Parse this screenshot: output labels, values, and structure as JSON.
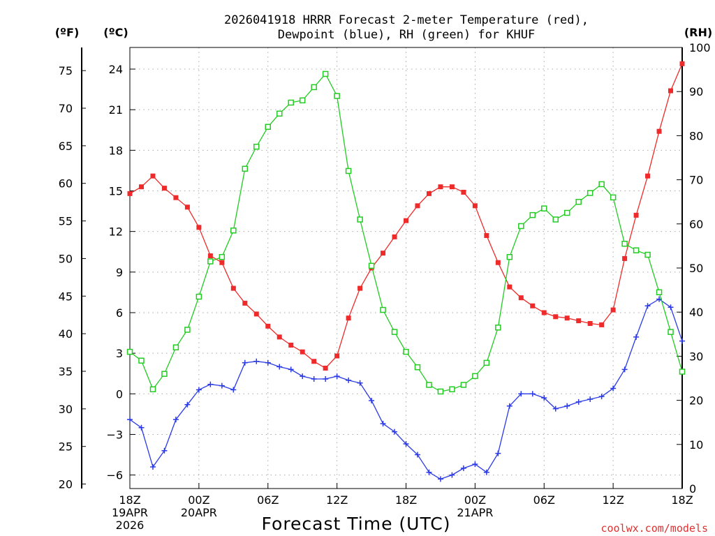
{
  "chart_data": {
    "type": "line",
    "title_lines": [
      "2026041918 HRRR Forecast 2-meter Temperature (red),",
      "Dewpoint (blue), RH (green) for KHUF"
    ],
    "xlabel": "Forecast Time (UTC)",
    "credit": "coolwx.com/models",
    "x_range_hours": [
      0,
      48
    ],
    "x_ticks": [
      {
        "hour": 0,
        "lines": [
          "18Z",
          "19APR",
          "2026"
        ]
      },
      {
        "hour": 6,
        "lines": [
          "00Z",
          "20APR"
        ]
      },
      {
        "hour": 12,
        "lines": [
          "06Z"
        ]
      },
      {
        "hour": 18,
        "lines": [
          "12Z"
        ]
      },
      {
        "hour": 24,
        "lines": [
          "18Z"
        ]
      },
      {
        "hour": 30,
        "lines": [
          "00Z",
          "21APR"
        ]
      },
      {
        "hour": 36,
        "lines": [
          "06Z"
        ]
      },
      {
        "hour": 42,
        "lines": [
          "12Z"
        ]
      },
      {
        "hour": 48,
        "lines": [
          "18Z"
        ]
      }
    ],
    "axes": {
      "celsius": {
        "unit_label": "(ºC)",
        "range": [
          -7,
          25.6
        ],
        "ticks": [
          -6,
          -3,
          0,
          3,
          6,
          9,
          12,
          15,
          18,
          21,
          24
        ],
        "tick_labels": [
          "−6",
          "−3",
          "0",
          "3",
          "6",
          "9",
          "12",
          "15",
          "18",
          "21",
          "24"
        ]
      },
      "fahrenheit": {
        "unit_label": "(ºF)",
        "ticks": [
          20,
          25,
          30,
          35,
          40,
          45,
          50,
          55,
          60,
          65,
          70,
          75
        ]
      },
      "rh": {
        "unit_label": "(RH)",
        "range": [
          0,
          100
        ],
        "ticks": [
          0,
          10,
          20,
          30,
          40,
          50,
          60,
          70,
          80,
          90,
          100
        ]
      }
    },
    "series": [
      {
        "name": "2-meter Temperature",
        "unit": "C",
        "color": "#ee2a2a",
        "marker": "filled-square",
        "values": [
          14.8,
          15.3,
          16.1,
          15.2,
          14.5,
          13.8,
          12.3,
          10.2,
          9.7,
          7.8,
          6.7,
          5.9,
          5.0,
          4.2,
          3.6,
          3.1,
          2.4,
          1.9,
          2.8,
          5.6,
          7.8,
          9.3,
          10.4,
          11.6,
          12.8,
          13.9,
          14.8,
          15.3,
          15.3,
          14.9,
          13.9,
          11.7,
          9.7,
          7.9,
          7.1,
          6.5,
          6.0,
          5.7,
          5.6,
          5.4,
          5.2,
          5.1,
          6.2,
          10.0,
          13.2,
          16.1,
          19.4,
          22.4,
          24.4
        ]
      },
      {
        "name": "Dewpoint",
        "unit": "C",
        "color": "#2a3ae6",
        "marker": "plus",
        "values": [
          -1.9,
          -2.5,
          -5.4,
          -4.2,
          -1.9,
          -0.8,
          0.3,
          0.7,
          0.6,
          0.3,
          2.3,
          2.4,
          2.3,
          2.0,
          1.8,
          1.3,
          1.1,
          1.1,
          1.3,
          1.0,
          0.8,
          -0.5,
          -2.2,
          -2.8,
          -3.7,
          -4.5,
          -5.8,
          -6.3,
          -6.0,
          -5.5,
          -5.2,
          -5.8,
          -4.4,
          -0.9,
          0.0,
          0.0,
          -0.3,
          -1.1,
          -0.9,
          -0.6,
          -0.4,
          -0.2,
          0.4,
          1.8,
          4.2,
          6.5,
          7.0,
          6.4,
          3.9
        ]
      },
      {
        "name": "RH",
        "unit": "percent",
        "color": "#22cc22",
        "marker": "open-square",
        "values": [
          31.0,
          29.0,
          22.5,
          26.0,
          32.0,
          36.0,
          43.5,
          51.5,
          52.5,
          58.5,
          72.5,
          77.5,
          82.0,
          85.0,
          87.5,
          88.0,
          91.0,
          94.0,
          89.0,
          72.0,
          61.0,
          50.5,
          40.5,
          35.5,
          31.0,
          27.5,
          23.5,
          22.0,
          22.5,
          23.5,
          25.5,
          28.5,
          36.5,
          52.5,
          59.5,
          62.0,
          63.5,
          61.0,
          62.5,
          65.0,
          67.0,
          69.0,
          66.0,
          55.5,
          54.0,
          53.0,
          44.5,
          35.5,
          26.5
        ]
      }
    ]
  }
}
